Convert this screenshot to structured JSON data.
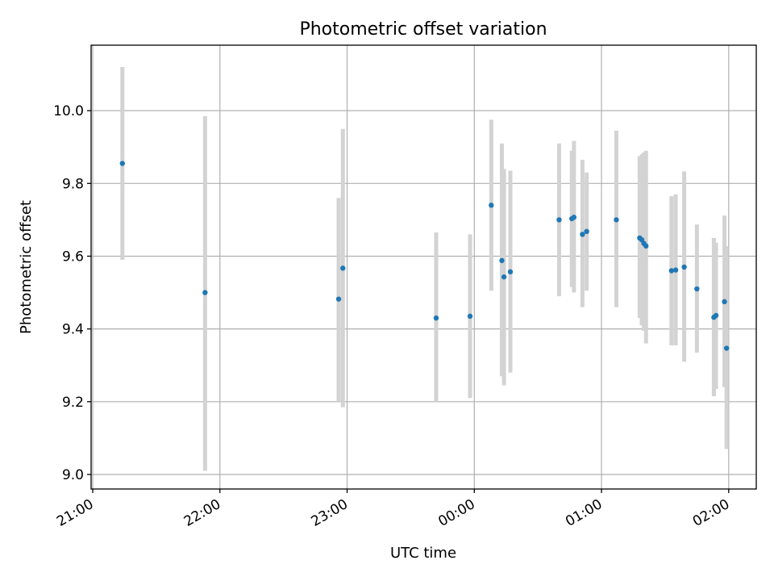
{
  "chart_data": {
    "type": "scatter",
    "title": "Photometric offset variation",
    "xlabel": "UTC time",
    "ylabel": "Photometric offset",
    "x_ticks": [
      "21:00",
      "22:00",
      "23:00",
      "00:00",
      "01:00",
      "02:00"
    ],
    "x_range": [
      "21:00",
      "02:13"
    ],
    "y_ticks": [
      "9.0",
      "9.2",
      "9.4",
      "9.6",
      "9.8",
      "10.0"
    ],
    "ylim": [
      8.96,
      10.18
    ],
    "grid": true,
    "colors": {
      "point": "#1f77b4",
      "errorbar": "#d3d3d3",
      "grid": "#b0b0b0"
    },
    "series": [
      {
        "points": [
          {
            "x": "21:14",
            "y": 9.855,
            "lo": 9.59,
            "hi": 10.12
          },
          {
            "x": "21:53",
            "y": 9.5,
            "lo": 9.01,
            "hi": 9.985
          },
          {
            "x": "22:56",
            "y": 9.482,
            "lo": 9.2,
            "hi": 9.76
          },
          {
            "x": "22:58",
            "y": 9.567,
            "lo": 9.185,
            "hi": 9.95
          },
          {
            "x": "23:42",
            "y": 9.43,
            "lo": 9.2,
            "hi": 9.665
          },
          {
            "x": "23:58",
            "y": 9.435,
            "lo": 9.21,
            "hi": 9.66
          },
          {
            "x": "00:08",
            "y": 9.74,
            "lo": 9.505,
            "hi": 9.975
          },
          {
            "x": "00:13",
            "y": 9.588,
            "lo": 9.27,
            "hi": 9.91
          },
          {
            "x": "00:14",
            "y": 9.543,
            "lo": 9.245,
            "hi": 9.84
          },
          {
            "x": "00:17",
            "y": 9.557,
            "lo": 9.28,
            "hi": 9.835
          },
          {
            "x": "00:40",
            "y": 9.7,
            "lo": 9.49,
            "hi": 9.91
          },
          {
            "x": "00:46",
            "y": 9.703,
            "lo": 9.515,
            "hi": 9.89
          },
          {
            "x": "00:47",
            "y": 9.707,
            "lo": 9.5,
            "hi": 9.917
          },
          {
            "x": "00:51",
            "y": 9.66,
            "lo": 9.46,
            "hi": 9.865
          },
          {
            "x": "00:53",
            "y": 9.668,
            "lo": 9.505,
            "hi": 9.83
          },
          {
            "x": "01:07",
            "y": 9.7,
            "lo": 9.46,
            "hi": 9.945
          },
          {
            "x": "01:18",
            "y": 9.65,
            "lo": 9.43,
            "hi": 9.875
          },
          {
            "x": "01:19",
            "y": 9.645,
            "lo": 9.41,
            "hi": 9.88
          },
          {
            "x": "01:20",
            "y": 9.635,
            "lo": 9.395,
            "hi": 9.885
          },
          {
            "x": "01:21",
            "y": 9.628,
            "lo": 9.36,
            "hi": 9.89
          },
          {
            "x": "01:33",
            "y": 9.56,
            "lo": 9.355,
            "hi": 9.765
          },
          {
            "x": "01:35",
            "y": 9.562,
            "lo": 9.355,
            "hi": 9.77
          },
          {
            "x": "01:39",
            "y": 9.57,
            "lo": 9.31,
            "hi": 9.833
          },
          {
            "x": "01:45",
            "y": 9.51,
            "lo": 9.335,
            "hi": 9.687
          },
          {
            "x": "01:53",
            "y": 9.432,
            "lo": 9.215,
            "hi": 9.65
          },
          {
            "x": "01:54",
            "y": 9.437,
            "lo": 9.235,
            "hi": 9.637
          },
          {
            "x": "01:58",
            "y": 9.475,
            "lo": 9.24,
            "hi": 9.712
          },
          {
            "x": "01:59",
            "y": 9.347,
            "lo": 9.07,
            "hi": 9.627
          }
        ]
      }
    ]
  }
}
